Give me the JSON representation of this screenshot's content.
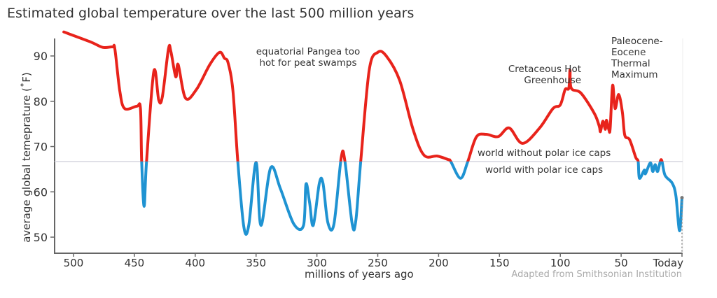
{
  "chart_data": {
    "type": "line",
    "title": "Estimated global temperature over the last 500 million years",
    "xlabel": "millions of years ago",
    "ylabel": "average global temeprature (˚F)",
    "xlim": [
      508,
      0
    ],
    "ylim": [
      48,
      96
    ],
    "x_ticks": [
      500,
      450,
      400,
      350,
      300,
      250,
      200,
      150,
      100,
      50,
      0
    ],
    "x_tick_labels": [
      "500",
      "450",
      "400",
      "350",
      "300",
      "250",
      "200",
      "150",
      "100",
      "50",
      "Today"
    ],
    "y_ticks": [
      50,
      60,
      70,
      80,
      90
    ],
    "y_tick_labels": [
      "50",
      "60",
      "70",
      "80",
      "90"
    ],
    "threshold": 66.7,
    "threshold_labels": {
      "above": "world without polar ice caps",
      "below": "world with polar ice caps"
    },
    "colors": {
      "above": "#e8231b",
      "below": "#1f93d2",
      "threshold": "#d8d8e0"
    },
    "annotations": [
      {
        "text": "equatorial Pangea too hot for peat swamps"
      },
      {
        "text": "Cretaceous Hot Greenhouse"
      },
      {
        "text": "Paleocene-Eocene Thermal Maximum"
      }
    ],
    "credit": "Adapted from Smithsonian Institution",
    "series": [
      {
        "name": "temperature",
        "x": [
          508,
          486,
          476,
          468,
          466,
          462,
          458,
          448,
          445,
          444,
          442,
          440,
          434,
          430,
          427,
          422,
          420,
          416,
          414,
          408,
          399,
          388,
          380,
          376,
          373,
          369,
          365,
          360,
          356,
          350,
          346,
          338,
          330,
          319,
          311,
          309,
          306,
          303,
          298,
          295,
          291,
          286,
          280,
          277,
          271,
          268,
          264,
          257,
          250,
          243,
          232,
          221,
          212,
          201,
          192,
          190,
          182,
          176,
          169,
          161,
          151,
          142,
          131,
          117,
          106,
          100,
          96,
          93,
          92,
          91,
          83,
          72,
          68,
          67,
          65,
          63,
          62,
          60,
          59,
          57,
          55,
          52,
          49,
          47,
          43,
          38,
          36,
          35,
          31,
          30,
          26,
          24,
          22,
          20,
          17,
          14,
          8,
          5,
          2,
          0
        ],
        "y": [
          95.3,
          93.1,
          91.9,
          92,
          91.5,
          82.3,
          78.4,
          78.9,
          78.4,
          66.7,
          56.8,
          66.7,
          86.6,
          80.3,
          81,
          91.5,
          91,
          85.4,
          88.1,
          80.7,
          82.6,
          88.1,
          90.8,
          89.5,
          88.5,
          82.3,
          66.7,
          52.2,
          52.6,
          66.5,
          52.6,
          65.3,
          60.7,
          52.9,
          52.6,
          61.7,
          57.6,
          52.6,
          61.9,
          61.9,
          53.2,
          52.9,
          67.6,
          66.8,
          52.9,
          53.7,
          66.7,
          86.9,
          90.8,
          90,
          84.6,
          73.8,
          68.1,
          67.9,
          67.1,
          66.7,
          63,
          66.7,
          72.1,
          72.7,
          72.2,
          74.1,
          70.7,
          74.1,
          78.4,
          79.2,
          82.6,
          82.9,
          86.9,
          82.9,
          81.8,
          77.3,
          74.5,
          73.3,
          75.6,
          73.8,
          75.8,
          73.6,
          74.1,
          83.5,
          78.4,
          81.5,
          77.6,
          72.5,
          71.5,
          67.6,
          66.7,
          63,
          64.8,
          64,
          66.4,
          64.5,
          66,
          64.5,
          67.1,
          63.7,
          61.9,
          59.1,
          51.4,
          58.7
        ]
      }
    ]
  }
}
